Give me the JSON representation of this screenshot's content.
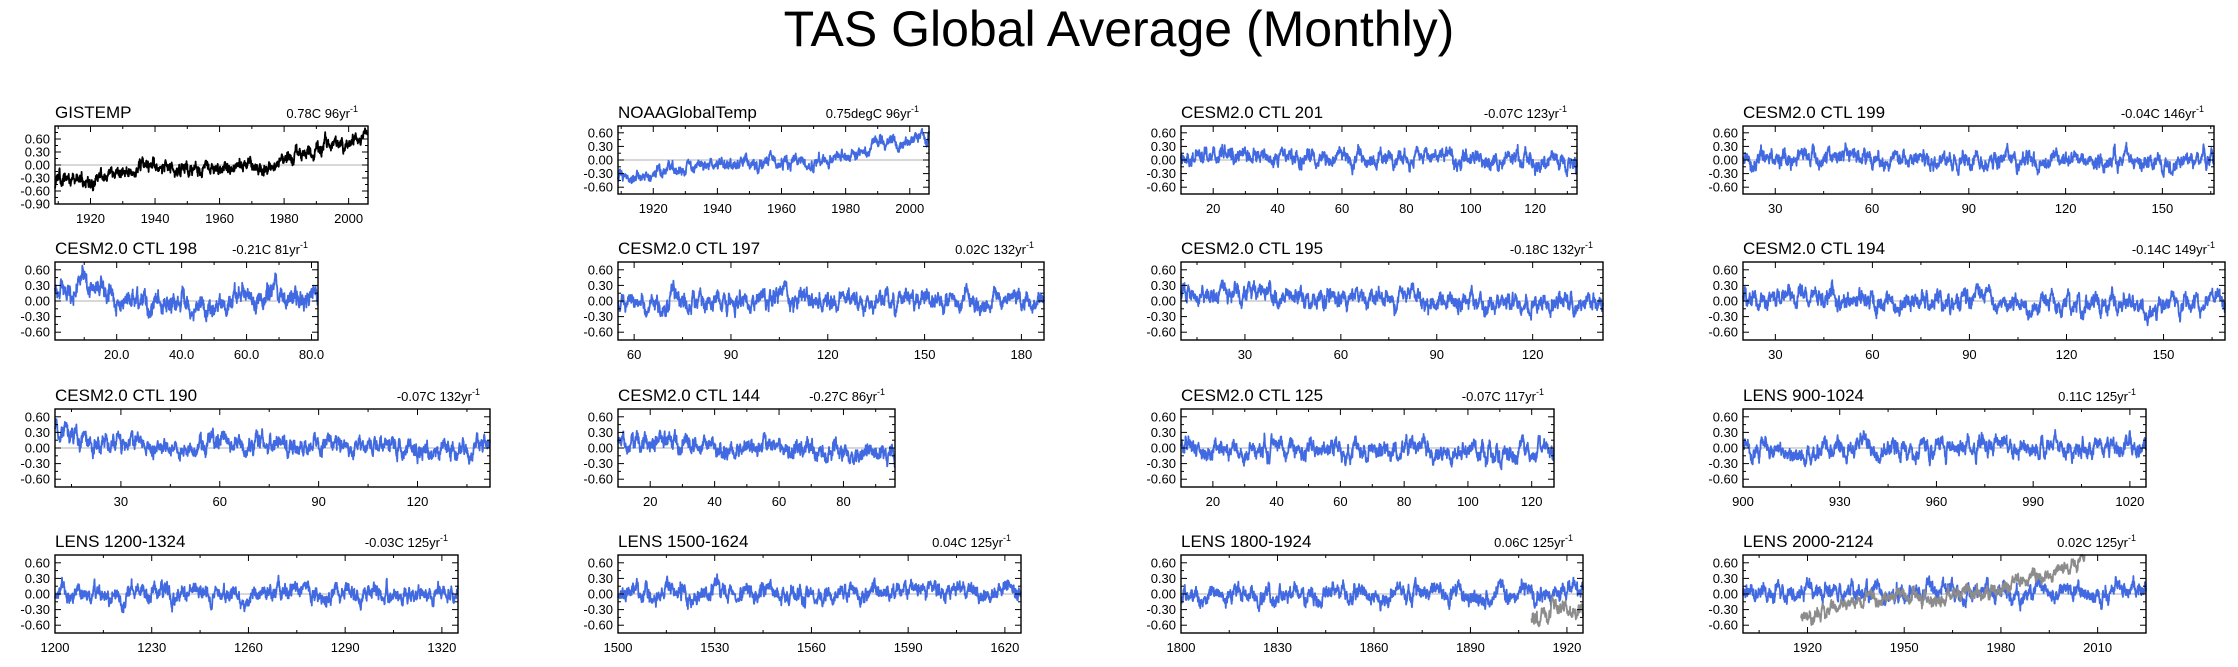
{
  "title": "TAS Global Average (Monthly)",
  "colors": {
    "model_line": "#4169e1",
    "obs_line": "#000000",
    "obs_overlay": "#8c8c8c",
    "zero_line": "#b0b0b0",
    "axis": "#000000"
  },
  "chart_data": [
    {
      "type": "line",
      "name": "GISTEMP",
      "trend": "0.78C 96yr",
      "trend_exp": "-1",
      "xlim": [
        1909,
        2006
      ],
      "xticks": [
        1920,
        1940,
        1960,
        1980,
        2000
      ],
      "xtick_labels": [
        "1920",
        "1940",
        "1960",
        "1980",
        "2000"
      ],
      "ylim": [
        -0.9,
        0.9
      ],
      "yticks": [
        -0.9,
        -0.6,
        -0.3,
        0.0,
        0.3,
        0.6
      ],
      "ytick_labels": [
        "-0.90",
        "-0.60",
        "-0.30",
        "0.00",
        "0.30",
        "0.60"
      ],
      "series": [
        {
          "name": "GISTEMP",
          "color": "obs",
          "anchors": [
            [
              1909,
              -0.45
            ],
            [
              1920,
              -0.3
            ],
            [
              1940,
              -0.05
            ],
            [
              1950,
              -0.1
            ],
            [
              1970,
              -0.05
            ],
            [
              1980,
              0.1
            ],
            [
              1990,
              0.3
            ],
            [
              2000,
              0.5
            ],
            [
              2006,
              0.65
            ]
          ],
          "noise": 0.12,
          "seed": 11
        }
      ]
    },
    {
      "type": "line",
      "name": "NOAAGlobalTemp",
      "trend": "0.75degC 96yr",
      "trend_exp": "-1",
      "xlim": [
        1909,
        2006
      ],
      "xticks": [
        1920,
        1940,
        1960,
        1980,
        2000
      ],
      "xtick_labels": [
        "1920",
        "1940",
        "1960",
        "1980",
        "2000"
      ],
      "ylim": [
        -0.75,
        0.75
      ],
      "yticks": [
        -0.6,
        -0.3,
        0.0,
        0.3,
        0.6
      ],
      "ytick_labels": [
        "-0.60",
        "-0.30",
        "0.00",
        "0.30",
        "0.60"
      ],
      "series": [
        {
          "name": "NOAAGlobalTemp",
          "color": "model",
          "anchors": [
            [
              1909,
              -0.4
            ],
            [
              1920,
              -0.3
            ],
            [
              1940,
              0.0
            ],
            [
              1950,
              -0.05
            ],
            [
              1970,
              -0.05
            ],
            [
              1980,
              0.1
            ],
            [
              1990,
              0.3
            ],
            [
              2000,
              0.45
            ],
            [
              2006,
              0.55
            ]
          ],
          "noise": 0.1,
          "seed": 12
        }
      ]
    },
    {
      "type": "line",
      "name": "CESM2.0 CTL 201",
      "trend": "-0.07C 123yr",
      "trend_exp": "-1",
      "xlim": [
        10,
        133
      ],
      "xticks": [
        20,
        40,
        60,
        80,
        100,
        120
      ],
      "xtick_labels": [
        "20",
        "40",
        "60",
        "80",
        "100",
        "120"
      ],
      "ylim": [
        -0.75,
        0.75
      ],
      "yticks": [
        -0.6,
        -0.3,
        0.0,
        0.3,
        0.6
      ],
      "ytick_labels": [
        "-0.60",
        "-0.30",
        "0.00",
        "0.30",
        "0.60"
      ],
      "series": [
        {
          "name": "CTL 201",
          "color": "model",
          "anchors": [
            [
              10,
              0.1
            ],
            [
              133,
              -0.05
            ]
          ],
          "noise": 0.13,
          "seed": 13
        }
      ]
    },
    {
      "type": "line",
      "name": "CESM2.0 CTL 199",
      "trend": "-0.04C 146yr",
      "trend_exp": "-1",
      "xlim": [
        20,
        166
      ],
      "xticks": [
        30,
        60,
        90,
        120,
        150
      ],
      "xtick_labels": [
        "30",
        "60",
        "90",
        "120",
        "150"
      ],
      "ylim": [
        -0.75,
        0.75
      ],
      "yticks": [
        -0.6,
        -0.3,
        0.0,
        0.3,
        0.6
      ],
      "ytick_labels": [
        "-0.60",
        "-0.30",
        "0.00",
        "0.30",
        "0.60"
      ],
      "series": [
        {
          "name": "CTL 199",
          "color": "model",
          "anchors": [
            [
              20,
              0.05
            ],
            [
              166,
              -0.05
            ]
          ],
          "noise": 0.13,
          "seed": 14
        }
      ]
    },
    {
      "type": "line",
      "name": "CESM2.0 CTL 198",
      "trend": "-0.21C 81yr",
      "trend_exp": "-1",
      "xlim": [
        1,
        82
      ],
      "xticks": [
        20,
        40,
        60,
        80
      ],
      "xtick_labels": [
        "20.0",
        "40.0",
        "60.0",
        "80.0"
      ],
      "ylim": [
        -0.75,
        0.75
      ],
      "yticks": [
        -0.6,
        -0.3,
        0.0,
        0.3,
        0.6
      ],
      "ytick_labels": [
        "-0.60",
        "-0.30",
        "0.00",
        "0.30",
        "0.60"
      ],
      "series": [
        {
          "name": "CTL 198",
          "color": "model",
          "anchors": [
            [
              1,
              0.2
            ],
            [
              10,
              0.35
            ],
            [
              30,
              0.0
            ],
            [
              50,
              -0.15
            ],
            [
              65,
              0.15
            ],
            [
              82,
              0.0
            ]
          ],
          "noise": 0.15,
          "seed": 15
        }
      ]
    },
    {
      "type": "line",
      "name": "CESM2.0 CTL 197",
      "trend": "0.02C 132yr",
      "trend_exp": "-1",
      "xlim": [
        55,
        187
      ],
      "xticks": [
        60,
        90,
        120,
        150,
        180
      ],
      "xtick_labels": [
        "60",
        "90",
        "120",
        "150",
        "180"
      ],
      "ylim": [
        -0.75,
        0.75
      ],
      "yticks": [
        -0.6,
        -0.3,
        0.0,
        0.3,
        0.6
      ],
      "ytick_labels": [
        "-0.60",
        "-0.30",
        "0.00",
        "0.30",
        "0.60"
      ],
      "series": [
        {
          "name": "CTL 197",
          "color": "model",
          "anchors": [
            [
              55,
              0.0
            ],
            [
              187,
              0.02
            ]
          ],
          "noise": 0.13,
          "seed": 16
        }
      ]
    },
    {
      "type": "line",
      "name": "CESM2.0 CTL 195",
      "trend": "-0.18C 132yr",
      "trend_exp": "-1",
      "xlim": [
        10,
        142
      ],
      "xticks": [
        30,
        60,
        90,
        120
      ],
      "xtick_labels": [
        "30",
        "60",
        "90",
        "120"
      ],
      "ylim": [
        -0.75,
        0.75
      ],
      "yticks": [
        -0.6,
        -0.3,
        0.0,
        0.3,
        0.6
      ],
      "ytick_labels": [
        "-0.60",
        "-0.30",
        "0.00",
        "0.30",
        "0.60"
      ],
      "series": [
        {
          "name": "CTL 195",
          "color": "model",
          "anchors": [
            [
              10,
              0.15
            ],
            [
              142,
              -0.1
            ]
          ],
          "noise": 0.13,
          "seed": 17
        }
      ]
    },
    {
      "type": "line",
      "name": "CESM2.0 CTL 194",
      "trend": "-0.14C 149yr",
      "trend_exp": "-1",
      "xlim": [
        20,
        169
      ],
      "xticks": [
        30,
        60,
        90,
        120,
        150
      ],
      "xtick_labels": [
        "30",
        "60",
        "90",
        "120",
        "150"
      ],
      "ylim": [
        -0.75,
        0.75
      ],
      "yticks": [
        -0.6,
        -0.3,
        0.0,
        0.3,
        0.6
      ],
      "ytick_labels": [
        "-0.60",
        "-0.30",
        "0.00",
        "0.30",
        "0.60"
      ],
      "series": [
        {
          "name": "CTL 194",
          "color": "model",
          "anchors": [
            [
              20,
              0.1
            ],
            [
              169,
              -0.1
            ]
          ],
          "noise": 0.13,
          "seed": 18
        }
      ]
    },
    {
      "type": "line",
      "name": "CESM2.0 CTL 190",
      "trend": "-0.07C 132yr",
      "trend_exp": "-1",
      "xlim": [
        10,
        142
      ],
      "xticks": [
        30,
        60,
        90,
        120
      ],
      "xtick_labels": [
        "30",
        "60",
        "90",
        "120"
      ],
      "ylim": [
        -0.75,
        0.75
      ],
      "yticks": [
        -0.6,
        -0.3,
        0.0,
        0.3,
        0.6
      ],
      "ytick_labels": [
        "-0.60",
        "-0.30",
        "0.00",
        "0.30",
        "0.60"
      ],
      "series": [
        {
          "name": "CTL 190",
          "color": "model",
          "anchors": [
            [
              10,
              0.3
            ],
            [
              25,
              0.1
            ],
            [
              142,
              -0.05
            ]
          ],
          "noise": 0.13,
          "seed": 19
        }
      ]
    },
    {
      "type": "line",
      "name": "CESM2.0 CTL 144",
      "trend": "-0.27C 86yr",
      "trend_exp": "-1",
      "xlim": [
        10,
        96
      ],
      "xticks": [
        20,
        40,
        60,
        80
      ],
      "xtick_labels": [
        "20",
        "40",
        "60",
        "80"
      ],
      "ylim": [
        -0.75,
        0.75
      ],
      "yticks": [
        -0.6,
        -0.3,
        0.0,
        0.3,
        0.6
      ],
      "ytick_labels": [
        "-0.60",
        "-0.30",
        "0.00",
        "0.30",
        "0.60"
      ],
      "series": [
        {
          "name": "CTL 144",
          "color": "model",
          "anchors": [
            [
              10,
              0.1
            ],
            [
              45,
              0.05
            ],
            [
              96,
              -0.15
            ]
          ],
          "noise": 0.13,
          "seed": 20
        }
      ]
    },
    {
      "type": "line",
      "name": "CESM2.0 CTL 125",
      "trend": "-0.07C 117yr",
      "trend_exp": "-1",
      "xlim": [
        10,
        127
      ],
      "xticks": [
        20,
        40,
        60,
        80,
        100,
        120
      ],
      "xtick_labels": [
        "20",
        "40",
        "60",
        "80",
        "100",
        "120"
      ],
      "ylim": [
        -0.75,
        0.75
      ],
      "yticks": [
        -0.6,
        -0.3,
        0.0,
        0.3,
        0.6
      ],
      "ytick_labels": [
        "-0.60",
        "-0.30",
        "0.00",
        "0.30",
        "0.60"
      ],
      "series": [
        {
          "name": "CTL 125",
          "color": "model",
          "anchors": [
            [
              10,
              0.0
            ],
            [
              127,
              -0.05
            ]
          ],
          "noise": 0.13,
          "seed": 21
        }
      ]
    },
    {
      "type": "line",
      "name": "LENS 900-1024",
      "trend": "0.11C 125yr",
      "trend_exp": "-1",
      "xlim": [
        900,
        1025
      ],
      "xticks": [
        900,
        930,
        960,
        990,
        1020
      ],
      "xtick_labels": [
        "900",
        "930",
        "960",
        "990",
        "1020"
      ],
      "ylim": [
        -0.75,
        0.75
      ],
      "yticks": [
        -0.6,
        -0.3,
        0.0,
        0.3,
        0.6
      ],
      "ytick_labels": [
        "-0.60",
        "-0.30",
        "0.00",
        "0.30",
        "0.60"
      ],
      "series": [
        {
          "name": "LENS 900-1024",
          "color": "model",
          "anchors": [
            [
              900,
              -0.05
            ],
            [
              1025,
              0.05
            ]
          ],
          "noise": 0.13,
          "seed": 22
        }
      ]
    },
    {
      "type": "line",
      "name": "LENS 1200-1324",
      "trend": "-0.03C 125yr",
      "trend_exp": "-1",
      "xlim": [
        1200,
        1325
      ],
      "xticks": [
        1200,
        1230,
        1260,
        1290,
        1320
      ],
      "xtick_labels": [
        "1200",
        "1230",
        "1260",
        "1290",
        "1320"
      ],
      "ylim": [
        -0.75,
        0.75
      ],
      "yticks": [
        -0.6,
        -0.3,
        0.0,
        0.3,
        0.6
      ],
      "ytick_labels": [
        "-0.60",
        "-0.30",
        "0.00",
        "0.30",
        "0.60"
      ],
      "series": [
        {
          "name": "LENS 1200-1324",
          "color": "model",
          "anchors": [
            [
              1200,
              0.0
            ],
            [
              1325,
              -0.02
            ]
          ],
          "noise": 0.12,
          "seed": 23
        }
      ]
    },
    {
      "type": "line",
      "name": "LENS 1500-1624",
      "trend": "0.04C 125yr",
      "trend_exp": "-1",
      "xlim": [
        1500,
        1625
      ],
      "xticks": [
        1500,
        1530,
        1560,
        1590,
        1620
      ],
      "xtick_labels": [
        "1500",
        "1530",
        "1560",
        "1590",
        "1620"
      ],
      "ylim": [
        -0.75,
        0.75
      ],
      "yticks": [
        -0.6,
        -0.3,
        0.0,
        0.3,
        0.6
      ],
      "ytick_labels": [
        "-0.60",
        "-0.30",
        "0.00",
        "0.30",
        "0.60"
      ],
      "series": [
        {
          "name": "LENS 1500-1624",
          "color": "model",
          "anchors": [
            [
              1500,
              0.0
            ],
            [
              1625,
              0.02
            ]
          ],
          "noise": 0.12,
          "seed": 24
        }
      ]
    },
    {
      "type": "line",
      "name": "LENS 1800-1924",
      "trend": "0.06C 125yr",
      "trend_exp": "-1",
      "xlim": [
        1800,
        1925
      ],
      "xticks": [
        1800,
        1830,
        1860,
        1890,
        1920
      ],
      "xtick_labels": [
        "1800",
        "1830",
        "1860",
        "1890",
        "1920"
      ],
      "ylim": [
        -0.75,
        0.75
      ],
      "yticks": [
        -0.6,
        -0.3,
        0.0,
        0.3,
        0.6
      ],
      "ytick_labels": [
        "-0.60",
        "-0.30",
        "0.00",
        "0.30",
        "0.60"
      ],
      "series": [
        {
          "name": "LENS 1800-1924",
          "color": "model",
          "anchors": [
            [
              1800,
              0.0
            ],
            [
              1925,
              0.03
            ]
          ],
          "noise": 0.12,
          "seed": 25
        },
        {
          "name": "GISTEMP overlay",
          "color": "overlay",
          "anchors": [
            [
              1909,
              -0.45
            ],
            [
              1915,
              -0.35
            ],
            [
              1925,
              -0.3
            ]
          ],
          "noise": 0.12,
          "seed": 26
        }
      ]
    },
    {
      "type": "line",
      "name": "LENS 2000-2124",
      "trend": "0.02C 125yr",
      "trend_exp": "-1",
      "xlim": [
        1900,
        2025
      ],
      "xticks": [
        1920,
        1950,
        1980,
        2010
      ],
      "xtick_labels": [
        "1920",
        "1950",
        "1980",
        "2010"
      ],
      "ylim": [
        -0.75,
        0.75
      ],
      "yticks": [
        -0.6,
        -0.3,
        0.0,
        0.3,
        0.6
      ],
      "ytick_labels": [
        "-0.60",
        "-0.30",
        "0.00",
        "0.30",
        "0.60"
      ],
      "series": [
        {
          "name": "LENS 2000-2124",
          "color": "model",
          "anchors": [
            [
              1900,
              0.05
            ],
            [
              2025,
              0.05
            ]
          ],
          "noise": 0.12,
          "seed": 27
        },
        {
          "name": "GISTEMP overlay",
          "color": "overlay",
          "anchors": [
            [
              1918,
              -0.45
            ],
            [
              1940,
              -0.1
            ],
            [
              1950,
              -0.1
            ],
            [
              1970,
              -0.05
            ],
            [
              1980,
              0.1
            ],
            [
              1990,
              0.3
            ],
            [
              2000,
              0.5
            ],
            [
              2006,
              0.65
            ]
          ],
          "noise": 0.1,
          "seed": 28
        }
      ]
    }
  ]
}
